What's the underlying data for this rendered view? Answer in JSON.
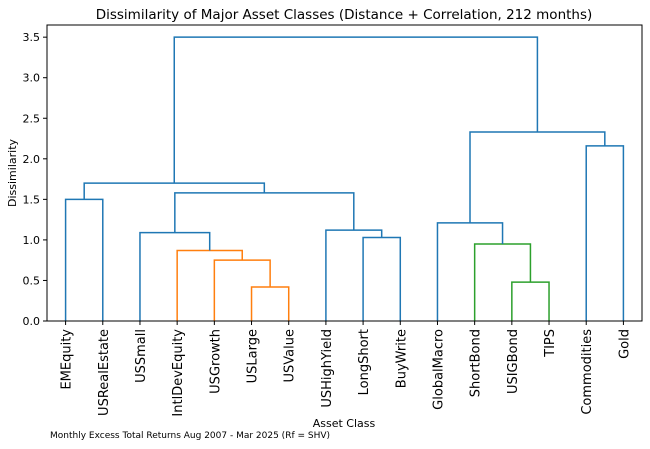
{
  "chart_data": {
    "type": "dendrogram",
    "title": "Dissimilarity of Major Asset Classes (Distance + Correlation, 212 months)",
    "xlabel": "Asset Class",
    "ylabel": "Dissimilarity",
    "ylim": [
      0,
      3.65
    ],
    "yticks": [
      "0.0",
      "0.5",
      "1.0",
      "1.5",
      "2.0",
      "2.5",
      "3.0",
      "3.5"
    ],
    "leaves": [
      "EMEquity",
      "USRealEstate",
      "USSmall",
      "IntlDevEquity",
      "USGrowth",
      "USLarge",
      "USValue",
      "USHighYield",
      "LongShort",
      "BuyWrite",
      "GlobalMacro",
      "ShortBond",
      "USIGBond",
      "TIPS",
      "Commodities",
      "Gold"
    ],
    "colors": {
      "default": "#1f77b4",
      "equity_cluster": "#ff7f0e",
      "bond_cluster": "#2ca02c"
    },
    "merges": [
      {
        "id": "A",
        "left": "USLarge",
        "right": "USValue",
        "height": 0.42,
        "color": "#ff7f0e"
      },
      {
        "id": "B",
        "left": "USGrowth",
        "right": "A",
        "height": 0.75,
        "color": "#ff7f0e"
      },
      {
        "id": "C",
        "left": "IntlDevEquity",
        "right": "B",
        "height": 0.87,
        "color": "#ff7f0e"
      },
      {
        "id": "D",
        "left": "USSmall",
        "right": "C",
        "height": 1.09,
        "color": "#1f77b4"
      },
      {
        "id": "E",
        "left": "LongShort",
        "right": "BuyWrite",
        "height": 1.03,
        "color": "#1f77b4"
      },
      {
        "id": "F",
        "left": "USHighYield",
        "right": "E",
        "height": 1.12,
        "color": "#1f77b4"
      },
      {
        "id": "G",
        "left": "D",
        "right": "F",
        "height": 1.58,
        "color": "#1f77b4"
      },
      {
        "id": "H",
        "left": "EMEquity",
        "right": "USRealEstate",
        "height": 1.5,
        "color": "#1f77b4"
      },
      {
        "id": "I",
        "left": "H",
        "right": "G",
        "height": 1.7,
        "color": "#1f77b4"
      },
      {
        "id": "J",
        "left": "USIGBond",
        "right": "TIPS",
        "height": 0.48,
        "color": "#2ca02c"
      },
      {
        "id": "K",
        "left": "ShortBond",
        "right": "J",
        "height": 0.95,
        "color": "#2ca02c"
      },
      {
        "id": "L",
        "left": "GlobalMacro",
        "right": "K",
        "height": 1.21,
        "color": "#1f77b4"
      },
      {
        "id": "M",
        "left": "Commodities",
        "right": "Gold",
        "height": 2.16,
        "color": "#1f77b4"
      },
      {
        "id": "N",
        "left": "L",
        "right": "M",
        "height": 2.33,
        "color": "#1f77b4"
      },
      {
        "id": "O",
        "left": "I",
        "right": "N",
        "height": 3.5,
        "color": "#1f77b4"
      }
    ],
    "footnote": "Monthly Excess Total Returns Aug 2007 - Mar 2025 (Rf = SHV)"
  }
}
